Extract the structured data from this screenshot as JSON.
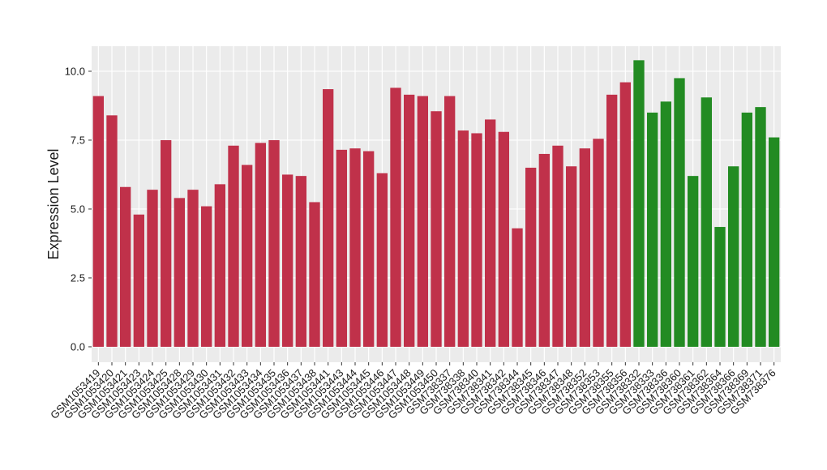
{
  "chart_data": {
    "type": "bar",
    "y_label": "Expression Level",
    "categories": [
      "GSM1053419",
      "GSM1053420",
      "GSM1053421",
      "GSM1053423",
      "GSM1053424",
      "GSM1053425",
      "GSM1053428",
      "GSM1053429",
      "GSM1053430",
      "GSM1053431",
      "GSM1053432",
      "GSM1053433",
      "GSM1053434",
      "GSM1053435",
      "GSM1053436",
      "GSM1053437",
      "GSM1053438",
      "GSM1053441",
      "GSM1053443",
      "GSM1053444",
      "GSM1053445",
      "GSM1053446",
      "GSM1053447",
      "GSM1053448",
      "GSM1053449",
      "GSM1053450",
      "GSM738337",
      "GSM738338",
      "GSM738340",
      "GSM738341",
      "GSM738342",
      "GSM738344",
      "GSM738345",
      "GSM738346",
      "GSM738347",
      "GSM738348",
      "GSM738352",
      "GSM738353",
      "GSM738355",
      "GSM738356",
      "GSM738332",
      "GSM738333",
      "GSM738336",
      "GSM738360",
      "GSM738361",
      "GSM738362",
      "GSM738364",
      "GSM738366",
      "GSM738369",
      "GSM738371",
      "GSM738376"
    ],
    "values": [
      9.1,
      8.4,
      5.8,
      4.8,
      5.7,
      7.5,
      5.4,
      5.7,
      5.1,
      5.9,
      7.3,
      6.6,
      7.4,
      7.5,
      6.25,
      6.2,
      5.25,
      9.35,
      7.15,
      7.2,
      7.1,
      6.3,
      9.4,
      9.15,
      9.1,
      8.55,
      9.1,
      7.85,
      7.75,
      8.25,
      7.8,
      4.3,
      6.5,
      7.0,
      7.3,
      6.55,
      7.2,
      7.55,
      9.15,
      9.6,
      10.4,
      8.5,
      8.9,
      9.75,
      6.2,
      9.05,
      4.35,
      6.55,
      8.5,
      8.7,
      7.6
    ],
    "colors": [
      "#c0314a",
      "#c0314a",
      "#c0314a",
      "#c0314a",
      "#c0314a",
      "#c0314a",
      "#c0314a",
      "#c0314a",
      "#c0314a",
      "#c0314a",
      "#c0314a",
      "#c0314a",
      "#c0314a",
      "#c0314a",
      "#c0314a",
      "#c0314a",
      "#c0314a",
      "#c0314a",
      "#c0314a",
      "#c0314a",
      "#c0314a",
      "#c0314a",
      "#c0314a",
      "#c0314a",
      "#c0314a",
      "#c0314a",
      "#c0314a",
      "#c0314a",
      "#c0314a",
      "#c0314a",
      "#c0314a",
      "#c0314a",
      "#c0314a",
      "#c0314a",
      "#c0314a",
      "#c0314a",
      "#c0314a",
      "#c0314a",
      "#c0314a",
      "#c0314a",
      "#228b22",
      "#228b22",
      "#228b22",
      "#228b22",
      "#228b22",
      "#228b22",
      "#228b22",
      "#228b22",
      "#228b22",
      "#228b22",
      "#228b22"
    ],
    "ylim": [
      -0.56,
      10.91
    ],
    "yticks": [
      {
        "value": 0,
        "label": "0.0"
      },
      {
        "value": 2.5,
        "label": "2.5"
      },
      {
        "value": 5,
        "label": "5.0"
      },
      {
        "value": 7.5,
        "label": "7.5"
      },
      {
        "value": 10,
        "label": "10.0"
      }
    ],
    "grid": true
  }
}
